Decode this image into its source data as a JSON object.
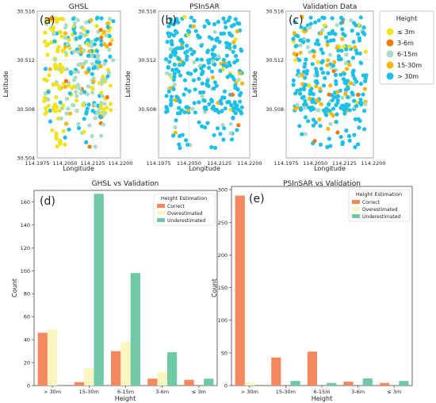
{
  "legend_top": {
    "title": "Height",
    "items": [
      {
        "label": "≤ 3m",
        "color": "#f2e21b"
      },
      {
        "label": "3-6m",
        "color": "#f07a12"
      },
      {
        "label": "6-15m",
        "color": "#a9dcc0"
      },
      {
        "label": "15-30m",
        "color": "#f5b70c"
      },
      {
        "label": "> 30m",
        "color": "#1fbfe8"
      }
    ]
  },
  "chart_data": [
    {
      "panel": "(a)",
      "type": "scatter",
      "title": "GHSL",
      "xlabel": "Longitude",
      "ylabel": "Latitude",
      "xlim": [
        114.1975,
        114.22
      ],
      "ylim": [
        30.504,
        30.516
      ],
      "xticks": [
        "114.1975",
        "114.2050",
        "114.2125",
        "114.2200"
      ],
      "yticks": [
        "30.504",
        "30.508",
        "30.512",
        "30.516"
      ],
      "yticklabels": [
        "30.504",
        "30.508",
        "30.512",
        "30.516"
      ],
      "composition": {
        "≤ 3m": 0.3,
        "3-6m": 0.04,
        "6-15m": 0.33,
        "15-30m": 0.12,
        "> 30m": 0.21
      }
    },
    {
      "panel": "(b)",
      "type": "scatter",
      "title": "PSInSAR",
      "xlabel": "Longitude",
      "ylabel": "Latitude",
      "xlim": [
        114.1975,
        114.22
      ],
      "ylim": [
        30.504,
        30.516
      ],
      "xticks": [
        "114.1975",
        "114.2050",
        "114.2125",
        "114.2200"
      ],
      "yticks": [
        "30.504",
        "30.508",
        "30.512",
        "30.516"
      ],
      "yticklabels": [
        "",
        "30.508",
        "30.512",
        "30.516"
      ],
      "composition": {
        "≤ 3m": 0.02,
        "3-6m": 0.01,
        "6-15m": 0.1,
        "15-30m": 0.07,
        "> 30m": 0.8
      }
    },
    {
      "panel": "(c)",
      "type": "scatter",
      "title": "Validation Data",
      "xlabel": "Longitude",
      "ylabel": "Latitude",
      "xlim": [
        114.1975,
        114.22
      ],
      "ylim": [
        30.504,
        30.516
      ],
      "xticks": [
        "114.1975",
        "114.2050",
        "114.2125",
        "114.2200"
      ],
      "yticks": [
        "30.504",
        "30.508",
        "30.512",
        "30.516"
      ],
      "yticklabels": [
        "",
        "30.508",
        "30.512",
        "30.516"
      ],
      "composition": {
        "≤ 3m": 0.06,
        "3-6m": 0.02,
        "6-15m": 0.1,
        "15-30m": 0.14,
        "> 30m": 0.68
      }
    },
    {
      "panel": "(d)",
      "type": "bar",
      "title": "GHSL vs Validation",
      "xlabel": "Height",
      "ylabel": "Count",
      "categories": [
        "> 30m",
        "15-30m",
        "6-15m",
        "3-6m",
        "≤ 3m"
      ],
      "ylim": [
        0,
        170
      ],
      "yticks": [
        0,
        20,
        40,
        60,
        80,
        100,
        120,
        140,
        160
      ],
      "legend_title": "Height Estimation",
      "series": [
        {
          "name": "Correct",
          "color": "#f4895f",
          "values": [
            46,
            3,
            30,
            6,
            5
          ]
        },
        {
          "name": "Overestimated",
          "color": "#fbf5c1",
          "values": [
            49,
            15,
            38,
            12,
            0
          ]
        },
        {
          "name": "Underestimated",
          "color": "#70c8a5",
          "values": [
            0,
            167,
            98,
            29,
            6
          ]
        }
      ]
    },
    {
      "panel": "(e)",
      "type": "bar",
      "title": "PSInSAR vs Validation",
      "xlabel": "Height",
      "ylabel": "Count",
      "categories": [
        "> 30m",
        "15-30m",
        "6-15m",
        "3-6m",
        "≤ 3m"
      ],
      "ylim": [
        0,
        305
      ],
      "yticks": [
        0,
        50,
        100,
        150,
        200,
        250,
        300
      ],
      "legend_title": "Height Estimation",
      "series": [
        {
          "name": "Correct",
          "color": "#f4895f",
          "values": [
            291,
            43,
            52,
            6,
            4
          ]
        },
        {
          "name": "Overestimated",
          "color": "#fbf5c1",
          "values": [
            5,
            0,
            0,
            0,
            0
          ]
        },
        {
          "name": "Underestimated",
          "color": "#70c8a5",
          "values": [
            0,
            7,
            4,
            11,
            7
          ]
        }
      ]
    }
  ]
}
